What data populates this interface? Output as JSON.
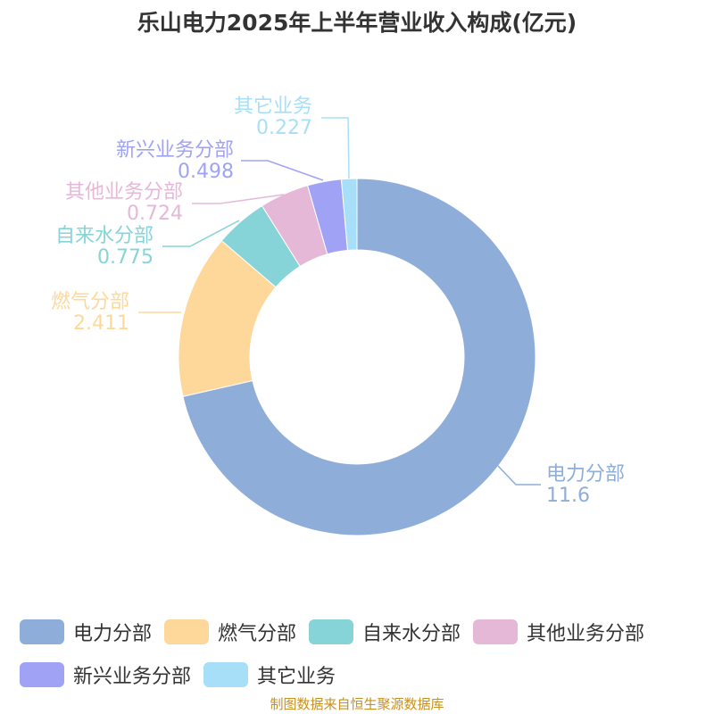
{
  "chart_data": {
    "type": "pie",
    "variant": "donut",
    "title": "乐山电力2025年上半年营业收入构成(亿元)",
    "categories": [
      "电力分部",
      "燃气分部",
      "自来水分部",
      "其他业务分部",
      "新兴业务分部",
      "其它业务"
    ],
    "values": [
      11.6,
      2.411,
      0.775,
      0.724,
      0.498,
      0.227
    ],
    "value_labels": [
      "11.6",
      "2.411",
      "0.775",
      "0.724",
      "0.498",
      "0.227"
    ],
    "colors": [
      "#8eaed9",
      "#fed89a",
      "#86d4d7",
      "#e6b8d8",
      "#a0a3f5",
      "#a8dff8"
    ],
    "legend": "bottom"
  },
  "source": "制图数据来自恒生聚源数据库"
}
